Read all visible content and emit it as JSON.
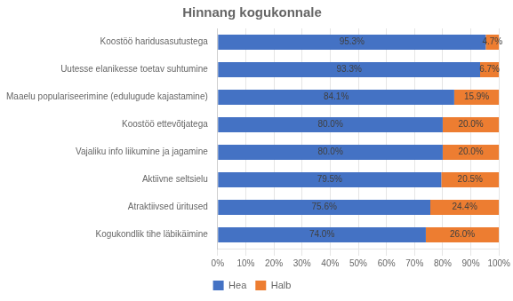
{
  "chart_data": {
    "type": "bar",
    "orientation": "horizontal",
    "stacked": true,
    "title": "Hinnang kogukonnale",
    "categories": [
      "Koostöö haridusasutustega",
      "Uutesse elanikesse toetav suhtumine",
      "Maaelu populariseerimine (edulugude kajastamine)",
      "Koostöö ettevõtjatega",
      "Vajaliku info liikumine ja jagamine",
      "Aktiivne seltsielu",
      "Atraktiivsed üritused",
      "Kogukondlik tihe läbikäimine"
    ],
    "series": [
      {
        "name": "Hea",
        "color": "#4472c4",
        "values": [
          95.3,
          93.3,
          84.1,
          80.0,
          80.0,
          79.5,
          75.6,
          74.0
        ],
        "value_labels": [
          "95.3%",
          "93.3%",
          "84.1%",
          "80.0%",
          "80.0%",
          "79.5%",
          "75.6%",
          "74.0%"
        ]
      },
      {
        "name": "Halb",
        "color": "#ed7d31",
        "values": [
          4.7,
          6.7,
          15.9,
          20.0,
          20.0,
          20.5,
          24.4,
          26.0
        ],
        "value_labels": [
          "4.7%",
          "6.7%",
          "15.9%",
          "20.0%",
          "20.0%",
          "20.5%",
          "24.4%",
          "26.0%"
        ]
      }
    ],
    "xlim": [
      0,
      100
    ],
    "xticks": [
      {
        "value": 0,
        "label": "0%"
      },
      {
        "value": 10,
        "label": "10%"
      },
      {
        "value": 20,
        "label": "20%"
      },
      {
        "value": 30,
        "label": "30%"
      },
      {
        "value": 40,
        "label": "40%"
      },
      {
        "value": 50,
        "label": "50%"
      },
      {
        "value": 60,
        "label": "60%"
      },
      {
        "value": 70,
        "label": "70%"
      },
      {
        "value": 80,
        "label": "80%"
      },
      {
        "value": 90,
        "label": "90%"
      },
      {
        "value": 100,
        "label": "100%"
      }
    ],
    "grid": true,
    "legend": "bottom",
    "data_labels": true
  }
}
